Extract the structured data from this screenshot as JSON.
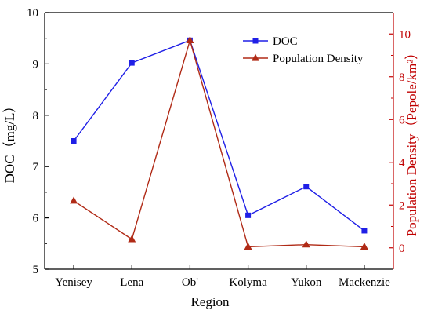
{
  "chart_data": {
    "type": "line",
    "categories": [
      "Yenisey",
      "Lena",
      "Ob'",
      "Kolyma",
      "Yukon",
      "Mackenzie"
    ],
    "xlabel": "Region",
    "ylabel_left": "DOC（mg/L）",
    "ylabel_right": "Population Density（Pepole/km²）",
    "ylim_left": [
      5,
      10
    ],
    "ylim_right": [
      -1,
      11
    ],
    "yticks_left": [
      5,
      6,
      7,
      8,
      9,
      10
    ],
    "yticks_right": [
      0,
      2,
      4,
      6,
      8,
      10
    ],
    "series": [
      {
        "name": "DOC",
        "axis": "left",
        "color": "#1f1fe6",
        "marker": "square",
        "values": [
          7.5,
          9.02,
          9.46,
          6.05,
          6.61,
          5.75
        ]
      },
      {
        "name": "Population Density",
        "axis": "right",
        "color": "#b02a16",
        "marker": "triangle",
        "values": [
          2.2,
          0.4,
          9.7,
          0.05,
          0.15,
          0.05
        ]
      }
    ],
    "legend_position": "top-right",
    "grid": false,
    "colors": {
      "left_axis": "#000000",
      "right_axis": "#c00000"
    }
  }
}
